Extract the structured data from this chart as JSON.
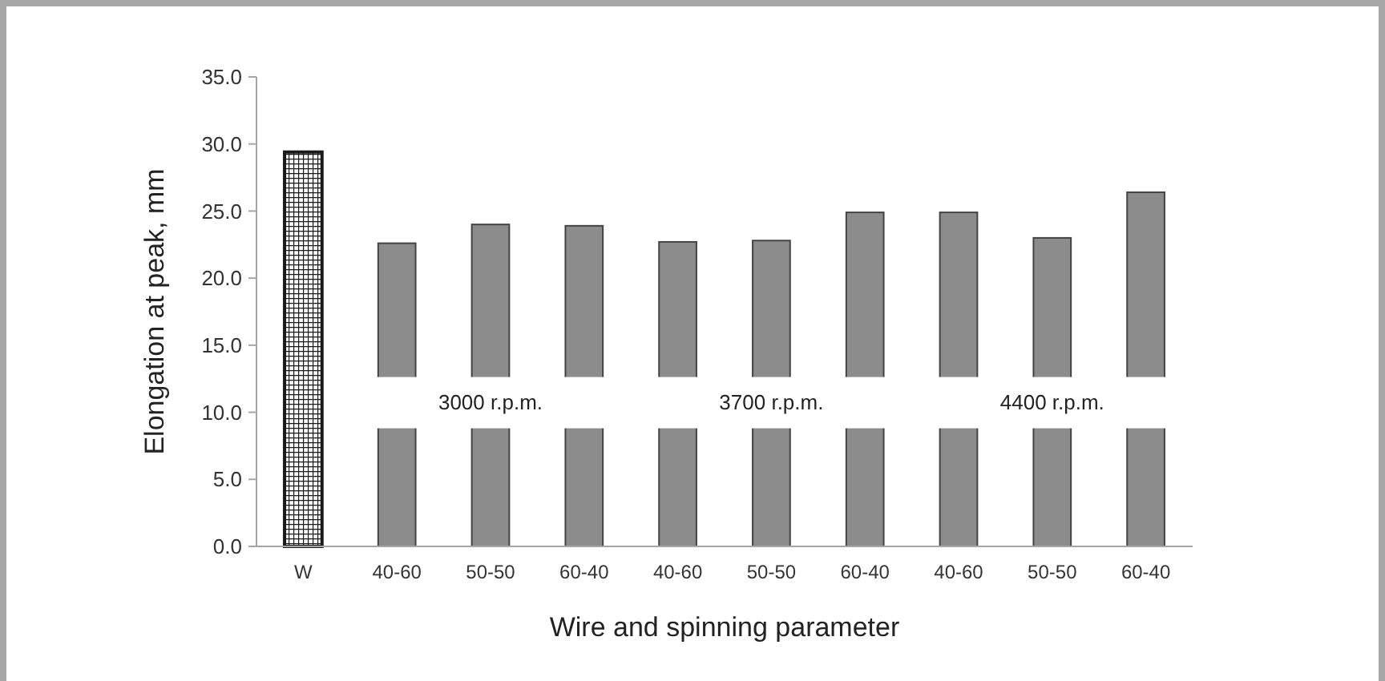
{
  "chart_data": {
    "type": "bar",
    "xlabel": "Wire and spinning parameter",
    "ylabel": "Elongation at peak, mm",
    "categories": [
      "W",
      "40-60",
      "50-50",
      "60-40",
      "40-60",
      "50-50",
      "60-40",
      "40-60",
      "50-50",
      "60-40"
    ],
    "values": [
      29.4,
      22.6,
      24.0,
      23.9,
      22.7,
      22.8,
      24.9,
      24.9,
      23.0,
      26.4
    ],
    "colors": [
      "#1a1a1a",
      "#8c8c8c",
      "#8c8c8c",
      "#8c8c8c",
      "#8c8c8c",
      "#8c8c8c",
      "#8c8c8c",
      "#8c8c8c",
      "#8c8c8c",
      "#8c8c8c"
    ],
    "ylim": [
      0,
      35
    ],
    "yticks": [
      {
        "value": 0,
        "label": "0.0"
      },
      {
        "value": 5,
        "label": "5.0"
      },
      {
        "value": 10,
        "label": "10.0"
      },
      {
        "value": 15,
        "label": "15.0"
      },
      {
        "value": 20,
        "label": "20.0"
      },
      {
        "value": 25,
        "label": "25.0"
      },
      {
        "value": 30,
        "label": "30.0"
      },
      {
        "value": 35,
        "label": "35.0"
      }
    ],
    "annotations": [
      "3000 r.p.m.",
      "3700 r.p.m.",
      "4400 r.p.m."
    ],
    "grid": false
  }
}
